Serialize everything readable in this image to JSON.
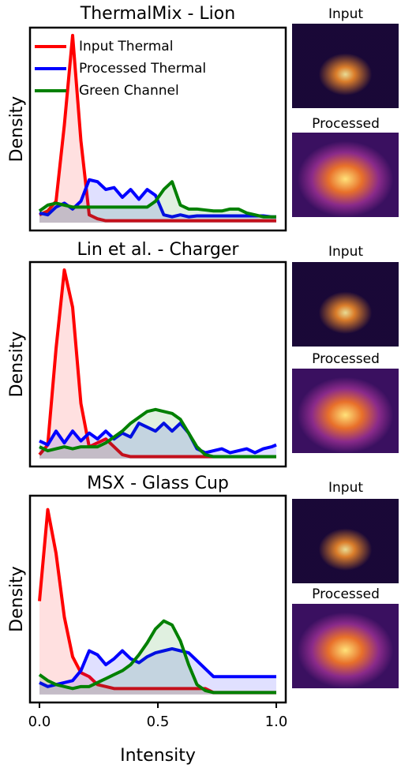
{
  "chart_data": [
    {
      "type": "line",
      "title": "ThermalMix - Lion",
      "y_label": "Density",
      "xlim": [
        -0.04,
        1.04
      ],
      "ylim": [
        -0.04,
        1
      ],
      "legend": "upper center",
      "fill": true,
      "x": [
        0,
        0.035,
        0.07,
        0.105,
        0.14,
        0.175,
        0.21,
        0.245,
        0.28,
        0.315,
        0.35,
        0.385,
        0.42,
        0.455,
        0.49,
        0.525,
        0.56,
        0.595,
        0.63,
        0.665,
        0.7,
        0.735,
        0.77,
        0.805,
        0.84,
        0.875,
        0.91,
        0.945,
        0.98,
        1.0
      ],
      "series": [
        {
          "name": "Input Thermal",
          "color": "#ff0000",
          "values": [
            0.04,
            0.06,
            0.11,
            0.5,
            0.96,
            0.42,
            0.04,
            0.02,
            0.01,
            0.01,
            0.01,
            0.01,
            0.01,
            0.01,
            0.01,
            0.01,
            0.01,
            0.01,
            0.01,
            0.01,
            0.01,
            0.01,
            0.01,
            0.01,
            0.01,
            0.01,
            0.01,
            0.01,
            0.01,
            0.01
          ]
        },
        {
          "name": "Processed Thermal",
          "color": "#0000ff",
          "values": [
            0.05,
            0.04,
            0.08,
            0.1,
            0.07,
            0.11,
            0.22,
            0.21,
            0.17,
            0.18,
            0.13,
            0.17,
            0.12,
            0.17,
            0.14,
            0.04,
            0.03,
            0.04,
            0.03,
            0.035,
            0.035,
            0.035,
            0.035,
            0.035,
            0.035,
            0.035,
            0.035,
            0.035,
            0.03,
            0.03
          ]
        },
        {
          "name": "Green Channel",
          "color": "#008000",
          "values": [
            0.06,
            0.09,
            0.1,
            0.09,
            0.08,
            0.08,
            0.08,
            0.08,
            0.08,
            0.08,
            0.08,
            0.08,
            0.08,
            0.08,
            0.11,
            0.17,
            0.21,
            0.09,
            0.07,
            0.07,
            0.065,
            0.06,
            0.06,
            0.07,
            0.07,
            0.05,
            0.04,
            0.03,
            0.03,
            0.03
          ]
        }
      ]
    },
    {
      "type": "line",
      "title": "Lin et al. - Charger",
      "y_label": "Density",
      "xlim": [
        -0.04,
        1.04
      ],
      "ylim": [
        -0.04,
        1
      ],
      "fill": true,
      "x": [
        0,
        0.035,
        0.07,
        0.105,
        0.14,
        0.175,
        0.21,
        0.245,
        0.28,
        0.315,
        0.35,
        0.385,
        0.42,
        0.455,
        0.49,
        0.525,
        0.56,
        0.595,
        0.63,
        0.665,
        0.7,
        0.735,
        0.77,
        0.805,
        0.84,
        0.875,
        0.91,
        0.945,
        0.98,
        1.0
      ],
      "series": [
        {
          "name": "Input Thermal",
          "color": "#ff0000",
          "values": [
            0.02,
            0.07,
            0.56,
            0.96,
            0.77,
            0.28,
            0.06,
            0.08,
            0.1,
            0.06,
            0.02,
            0.01,
            0.01,
            0.01,
            0.01,
            0.01,
            0.01,
            0.01,
            0.01,
            0.01,
            0.01,
            0.01,
            0.01,
            0.01,
            0.01,
            0.01,
            0.01,
            0.01,
            0.01,
            0.01
          ]
        },
        {
          "name": "Processed Thermal",
          "color": "#0000ff",
          "values": [
            0.09,
            0.07,
            0.14,
            0.08,
            0.14,
            0.09,
            0.13,
            0.1,
            0.14,
            0.1,
            0.13,
            0.11,
            0.18,
            0.16,
            0.14,
            0.18,
            0.14,
            0.18,
            0.13,
            0.05,
            0.03,
            0.04,
            0.05,
            0.03,
            0.04,
            0.05,
            0.03,
            0.05,
            0.06,
            0.07
          ]
        },
        {
          "name": "Green Channel",
          "color": "#008000",
          "values": [
            0.06,
            0.04,
            0.05,
            0.06,
            0.05,
            0.06,
            0.06,
            0.06,
            0.08,
            0.11,
            0.14,
            0.18,
            0.21,
            0.24,
            0.25,
            0.24,
            0.23,
            0.2,
            0.13,
            0.06,
            0.02,
            0.01,
            0.01,
            0.01,
            0.01,
            0.01,
            0.01,
            0.01,
            0.01,
            0.01
          ]
        }
      ]
    },
    {
      "type": "line",
      "title": "MSX - Glass Cup",
      "y_label": "Density",
      "x_label": "Intensity",
      "xlim": [
        -0.04,
        1.04
      ],
      "ylim": [
        -0.04,
        1
      ],
      "fill": true,
      "xticks": [
        {
          "value": 0,
          "label": "0.0"
        },
        0.5,
        {
          "value": 1,
          "label": "1.0"
        }
      ],
      "x": [
        0,
        0.035,
        0.07,
        0.105,
        0.14,
        0.175,
        0.21,
        0.245,
        0.28,
        0.315,
        0.35,
        0.385,
        0.42,
        0.455,
        0.49,
        0.525,
        0.56,
        0.595,
        0.63,
        0.665,
        0.7,
        0.735,
        0.77,
        0.805,
        0.84,
        0.875,
        0.91,
        0.945,
        0.98,
        1.0
      ],
      "series": [
        {
          "name": "Input Thermal",
          "color": "#ff0000",
          "values": [
            0.47,
            0.93,
            0.71,
            0.39,
            0.19,
            0.11,
            0.09,
            0.05,
            0.04,
            0.03,
            0.03,
            0.03,
            0.03,
            0.03,
            0.03,
            0.03,
            0.03,
            0.03,
            0.03,
            0.03,
            0.03,
            0.01,
            0.01,
            0.01,
            0.01,
            0.01,
            0.01,
            0.01,
            0.01,
            0.01
          ]
        },
        {
          "name": "Processed Thermal",
          "color": "#0000ff",
          "values": [
            0.06,
            0.04,
            0.05,
            0.06,
            0.07,
            0.12,
            0.22,
            0.2,
            0.15,
            0.18,
            0.22,
            0.18,
            0.16,
            0.19,
            0.21,
            0.22,
            0.23,
            0.22,
            0.21,
            0.17,
            0.13,
            0.09,
            0.09,
            0.09,
            0.09,
            0.09,
            0.09,
            0.09,
            0.09,
            0.09
          ]
        },
        {
          "name": "Green Channel",
          "color": "#008000",
          "values": [
            0.1,
            0.07,
            0.05,
            0.04,
            0.03,
            0.04,
            0.04,
            0.06,
            0.08,
            0.1,
            0.12,
            0.15,
            0.2,
            0.26,
            0.33,
            0.37,
            0.35,
            0.27,
            0.15,
            0.05,
            0.02,
            0.01,
            0.01,
            0.01,
            0.01,
            0.01,
            0.01,
            0.01,
            0.01,
            0.01
          ]
        }
      ]
    }
  ],
  "thumbnails": [
    {
      "input_label": "Input",
      "processed_label": "Processed"
    },
    {
      "input_label": "Input",
      "processed_label": "Processed"
    },
    {
      "input_label": "Input",
      "processed_label": "Processed"
    }
  ]
}
